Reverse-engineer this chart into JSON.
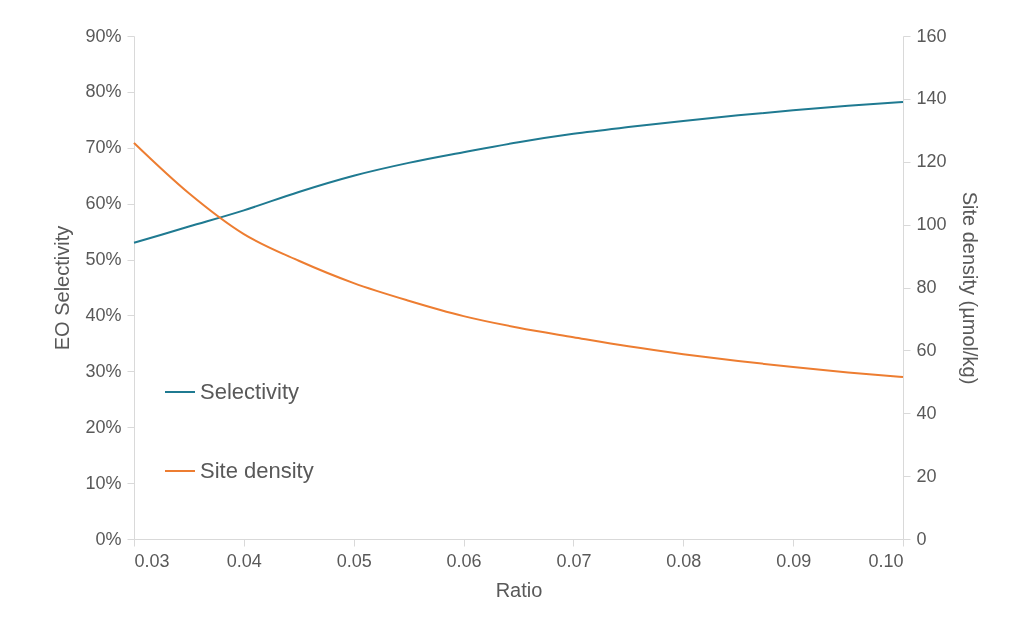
{
  "chart_data": {
    "type": "line",
    "xlabel": "Ratio",
    "ylabel": "EO Selectivity",
    "y2label": "Site density (µmol/kg)",
    "x": [
      0.03,
      0.035,
      0.04,
      0.045,
      0.05,
      0.055,
      0.06,
      0.065,
      0.07,
      0.075,
      0.08,
      0.085,
      0.09,
      0.095,
      0.1
    ],
    "series": [
      {
        "name": "Selectivity",
        "color": "#1f7a91",
        "values": [
          53,
          55.9,
          58.8,
          62.1,
          65,
          67.3,
          69.2,
          71,
          72.5,
          73.7,
          74.8,
          75.8,
          76.7,
          77.5,
          78.2
        ]
      },
      {
        "name": "Site density",
        "color": "#ed7d31",
        "axis": "y2",
        "values": [
          126,
          110,
          97,
          88.5,
          81.4,
          75.8,
          70.9,
          67.2,
          64.2,
          61.3,
          58.8,
          56.6,
          54.7,
          53,
          51.5
        ]
      }
    ],
    "xlim": [
      0.03,
      0.1
    ],
    "xticks": [
      {
        "value": 0.03,
        "label": "0.03"
      },
      {
        "value": 0.04,
        "label": "0.04"
      },
      {
        "value": 0.05,
        "label": "0.05"
      },
      {
        "value": 0.06,
        "label": "0.06"
      },
      {
        "value": 0.07,
        "label": "0.07"
      },
      {
        "value": 0.08,
        "label": "0.08"
      },
      {
        "value": 0.09,
        "label": "0.09"
      },
      {
        "value": 0.1,
        "label": "0.10"
      }
    ],
    "ylim": [
      0,
      90
    ],
    "yticks": [
      {
        "value": 0,
        "label": "0%"
      },
      {
        "value": 10,
        "label": "10%"
      },
      {
        "value": 20,
        "label": "20%"
      },
      {
        "value": 30,
        "label": "30%"
      },
      {
        "value": 40,
        "label": "40%"
      },
      {
        "value": 50,
        "label": "50%"
      },
      {
        "value": 60,
        "label": "60%"
      },
      {
        "value": 70,
        "label": "70%"
      },
      {
        "value": 80,
        "label": "80%"
      },
      {
        "value": 90,
        "label": "90%"
      }
    ],
    "y2lim": [
      0,
      160
    ],
    "y2ticks": [
      0,
      20,
      40,
      60,
      80,
      100,
      120,
      140,
      160
    ],
    "grid": false,
    "legend": "bottom left",
    "marker": "none",
    "line_style": "solid"
  }
}
